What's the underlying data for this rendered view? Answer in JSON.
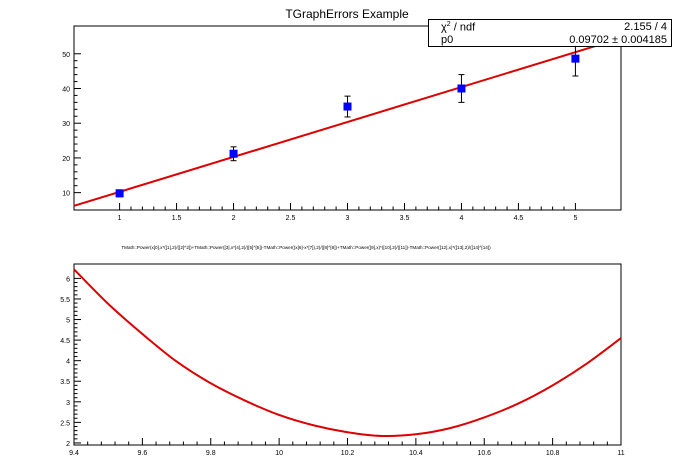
{
  "top": {
    "title": "TGraphErrors Example",
    "chart_data": {
      "type": "scatter",
      "title": "TGraphErrors Example",
      "x": [
        1,
        2,
        3,
        4,
        5
      ],
      "y": [
        9.8,
        21.2,
        34.8,
        40.0,
        48.6
      ],
      "yerr": [
        1.0,
        2.0,
        3.0,
        4.0,
        5.0
      ],
      "fit_line": {
        "x": [
          0.6,
          5.4
        ],
        "y": [
          6.2,
          54.5
        ]
      },
      "xlim": [
        0.6,
        5.4
      ],
      "ylim": [
        5,
        58
      ],
      "xticks": [
        "1",
        "1.5",
        "2",
        "2.5",
        "3",
        "3.5",
        "4",
        "4.5",
        "5"
      ],
      "yticks": [
        "10",
        "20",
        "30",
        "40",
        "50"
      ],
      "marker_color": "#0000ff",
      "fit_color": "#dd0000"
    },
    "stats": {
      "chi2_label": "χ",
      "chi2_sup": "2",
      "chi2_suffix": " / ndf",
      "chi2_value": "2.155 / 4",
      "p0_label": "p0",
      "p0_value": "0.09702  ± 0.004185"
    }
  },
  "bottom": {
    "title": "TMath::Power(x[0],x*([1],2)/([2]^2])+TMath::Power([3],x*[4],2)/([5]^[5])-TMath::Power((x[6]-x*[7]),2)/([8]^[8])+TMath::Power([9],x)*([10],2)/([11])-TMath::Power([12],x)*([13],2)/([14]^[14])",
    "chart_data": {
      "type": "line",
      "x": [
        9.4,
        9.5,
        9.6,
        9.7,
        9.8,
        9.9,
        10.0,
        10.1,
        10.2,
        10.3,
        10.4,
        10.5,
        10.6,
        10.7,
        10.8,
        10.9,
        11.0
      ],
      "y": [
        6.22,
        5.38,
        4.65,
        3.98,
        3.45,
        3.03,
        2.68,
        2.43,
        2.26,
        2.17,
        2.21,
        2.36,
        2.62,
        2.96,
        3.4,
        3.93,
        4.55
      ],
      "xlim": [
        9.4,
        11.0
      ],
      "ylim": [
        1.95,
        6.35
      ],
      "xticks": [
        "9.4",
        "9.6",
        "9.8",
        "10",
        "10.2",
        "10.4",
        "10.6",
        "10.8",
        "11"
      ],
      "yticks": [
        "2",
        "2.5",
        "3",
        "3.5",
        "4",
        "4.5",
        "5",
        "5.5",
        "6"
      ],
      "line_color": "#dd0000"
    }
  }
}
